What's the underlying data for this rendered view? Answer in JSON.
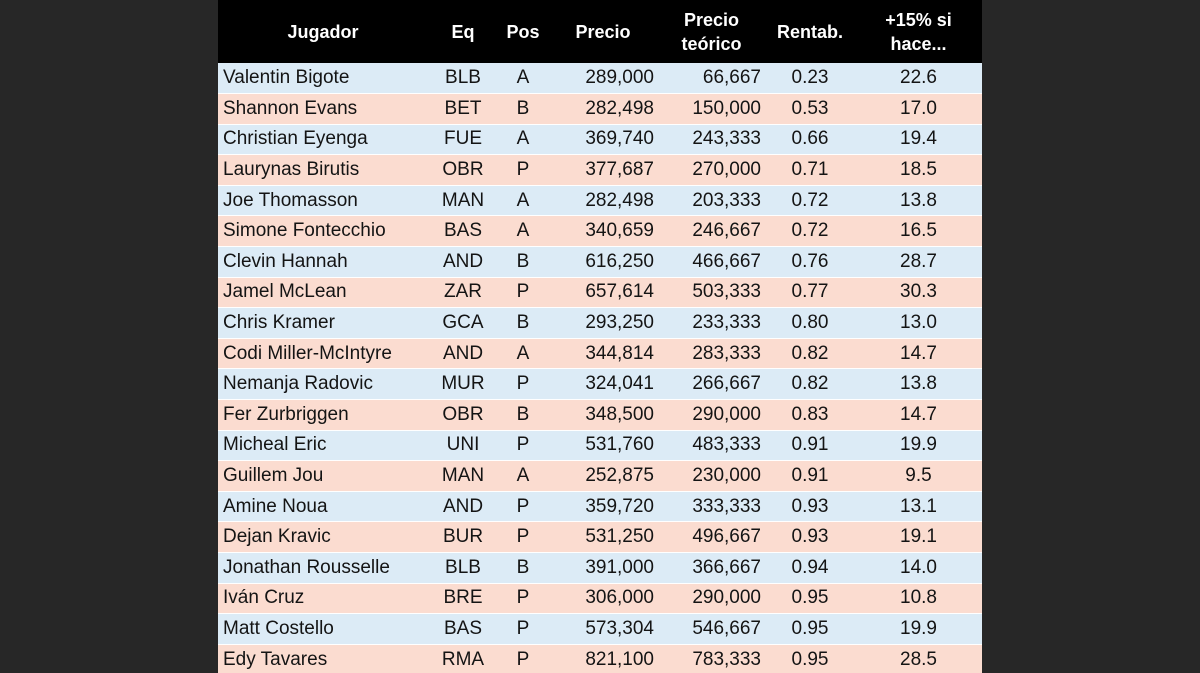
{
  "header": {
    "jugador": "Jugador",
    "eq": "Eq",
    "pos": "Pos",
    "precio": "Precio",
    "precio_teorico": "Precio teórico",
    "rentab": "Rentab.",
    "si_hace": "+15% si hace..."
  },
  "colors": {
    "background": "#272727",
    "header_bg": "#000000",
    "row_blue": "#dcebf6",
    "row_peach": "#fbdcd0"
  },
  "rows": [
    {
      "jugador": "Valentin Bigote",
      "eq": "BLB",
      "pos": "A",
      "precio": "289,000",
      "teorico": "66,667",
      "rentab": "0.23",
      "si_hace": "22.6"
    },
    {
      "jugador": "Shannon Evans",
      "eq": "BET",
      "pos": "B",
      "precio": "282,498",
      "teorico": "150,000",
      "rentab": "0.53",
      "si_hace": "17.0"
    },
    {
      "jugador": "Christian Eyenga",
      "eq": "FUE",
      "pos": "A",
      "precio": "369,740",
      "teorico": "243,333",
      "rentab": "0.66",
      "si_hace": "19.4"
    },
    {
      "jugador": "Laurynas Birutis",
      "eq": "OBR",
      "pos": "P",
      "precio": "377,687",
      "teorico": "270,000",
      "rentab": "0.71",
      "si_hace": "18.5"
    },
    {
      "jugador": "Joe Thomasson",
      "eq": "MAN",
      "pos": "A",
      "precio": "282,498",
      "teorico": "203,333",
      "rentab": "0.72",
      "si_hace": "13.8"
    },
    {
      "jugador": "Simone Fontecchio",
      "eq": "BAS",
      "pos": "A",
      "precio": "340,659",
      "teorico": "246,667",
      "rentab": "0.72",
      "si_hace": "16.5"
    },
    {
      "jugador": "Clevin Hannah",
      "eq": "AND",
      "pos": "B",
      "precio": "616,250",
      "teorico": "466,667",
      "rentab": "0.76",
      "si_hace": "28.7"
    },
    {
      "jugador": "Jamel McLean",
      "eq": "ZAR",
      "pos": "P",
      "precio": "657,614",
      "teorico": "503,333",
      "rentab": "0.77",
      "si_hace": "30.3"
    },
    {
      "jugador": "Chris Kramer",
      "eq": "GCA",
      "pos": "B",
      "precio": "293,250",
      "teorico": "233,333",
      "rentab": "0.80",
      "si_hace": "13.0"
    },
    {
      "jugador": "Codi Miller-McIntyre",
      "eq": "AND",
      "pos": "A",
      "precio": "344,814",
      "teorico": "283,333",
      "rentab": "0.82",
      "si_hace": "14.7"
    },
    {
      "jugador": "Nemanja Radovic",
      "eq": "MUR",
      "pos": "P",
      "precio": "324,041",
      "teorico": "266,667",
      "rentab": "0.82",
      "si_hace": "13.8"
    },
    {
      "jugador": "Fer Zurbriggen",
      "eq": "OBR",
      "pos": "B",
      "precio": "348,500",
      "teorico": "290,000",
      "rentab": "0.83",
      "si_hace": "14.7"
    },
    {
      "jugador": "Micheal Eric",
      "eq": "UNI",
      "pos": "P",
      "precio": "531,760",
      "teorico": "483,333",
      "rentab": "0.91",
      "si_hace": "19.9"
    },
    {
      "jugador": "Guillem Jou",
      "eq": "MAN",
      "pos": "A",
      "precio": "252,875",
      "teorico": "230,000",
      "rentab": "0.91",
      "si_hace": "9.5"
    },
    {
      "jugador": "Amine Noua",
      "eq": "AND",
      "pos": "P",
      "precio": "359,720",
      "teorico": "333,333",
      "rentab": "0.93",
      "si_hace": "13.1"
    },
    {
      "jugador": "Dejan Kravic",
      "eq": "BUR",
      "pos": "P",
      "precio": "531,250",
      "teorico": "496,667",
      "rentab": "0.93",
      "si_hace": "19.1"
    },
    {
      "jugador": "Jonathan Rousselle",
      "eq": "BLB",
      "pos": "B",
      "precio": "391,000",
      "teorico": "366,667",
      "rentab": "0.94",
      "si_hace": "14.0"
    },
    {
      "jugador": "Iván Cruz",
      "eq": "BRE",
      "pos": "P",
      "precio": "306,000",
      "teorico": "290,000",
      "rentab": "0.95",
      "si_hace": "10.8"
    },
    {
      "jugador": "Matt Costello",
      "eq": "BAS",
      "pos": "P",
      "precio": "573,304",
      "teorico": "546,667",
      "rentab": "0.95",
      "si_hace": "19.9"
    },
    {
      "jugador": "Edy Tavares",
      "eq": "RMA",
      "pos": "P",
      "precio": "821,100",
      "teorico": "783,333",
      "rentab": "0.95",
      "si_hace": "28.5"
    }
  ]
}
